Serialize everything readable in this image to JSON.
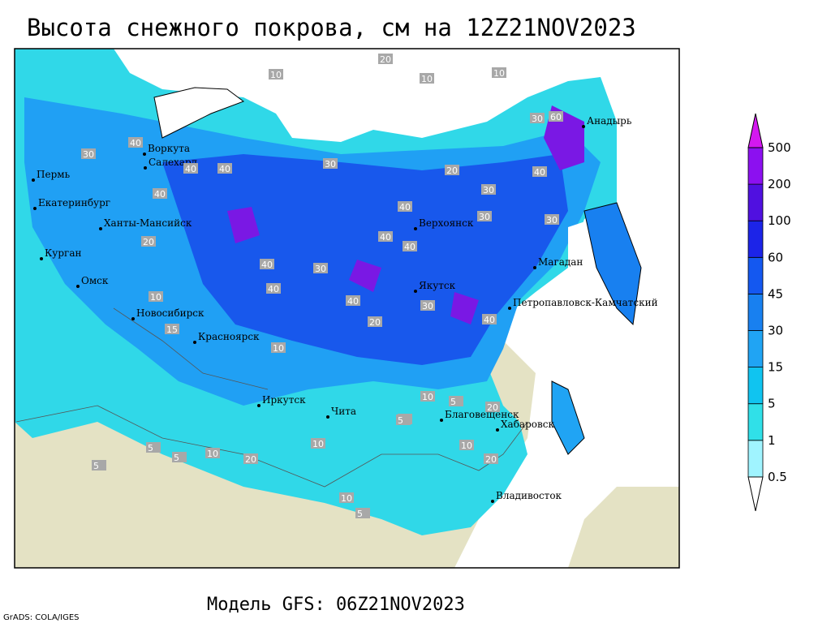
{
  "header": {
    "title": "Высота снежного покрова, см на 12Z21NOV2023"
  },
  "map": {
    "cities": [
      "Анадырь",
      "Воркута",
      "Салехард",
      "Пермь",
      "Екатеринбург",
      "Ханты-Мансийск",
      "Верхоянск",
      "Курган",
      "Магадан",
      "Омск",
      "Якутск",
      "Петропавловск-Камчатский",
      "Новосибирск",
      "Красноярск",
      "Иркутск",
      "Чита",
      "Благовещенск",
      "Хабаровск",
      "Владивосток"
    ],
    "contour_labels": [
      "20",
      "10",
      "10",
      "10",
      "30",
      "60",
      "40",
      "30",
      "40",
      "40",
      "30",
      "40",
      "30",
      "20",
      "30",
      "40",
      "40",
      "40",
      "40",
      "30",
      "40",
      "40",
      "30",
      "40",
      "20",
      "40",
      "30",
      "20",
      "10",
      "10",
      "5",
      "10",
      "20",
      "10",
      "5",
      "20",
      "10",
      "5",
      "5",
      "10",
      "20",
      "5",
      "10",
      "5",
      "15",
      "10"
    ]
  },
  "legend": {
    "levels": [
      "0.5",
      "1",
      "5",
      "15",
      "30",
      "45",
      "60",
      "100",
      "200",
      "500"
    ],
    "colors": [
      "#ffffff",
      "#a0f4ff",
      "#30e0e8",
      "#10c4f0",
      "#20a4f4",
      "#1880f0",
      "#1458f0",
      "#1c24e8",
      "#5010e0",
      "#8c10f0",
      "#d418f0"
    ]
  },
  "footer": {
    "model": "Модель GFS: 06Z21NOV2023",
    "credit": "GrADS: COLA/IGES"
  }
}
